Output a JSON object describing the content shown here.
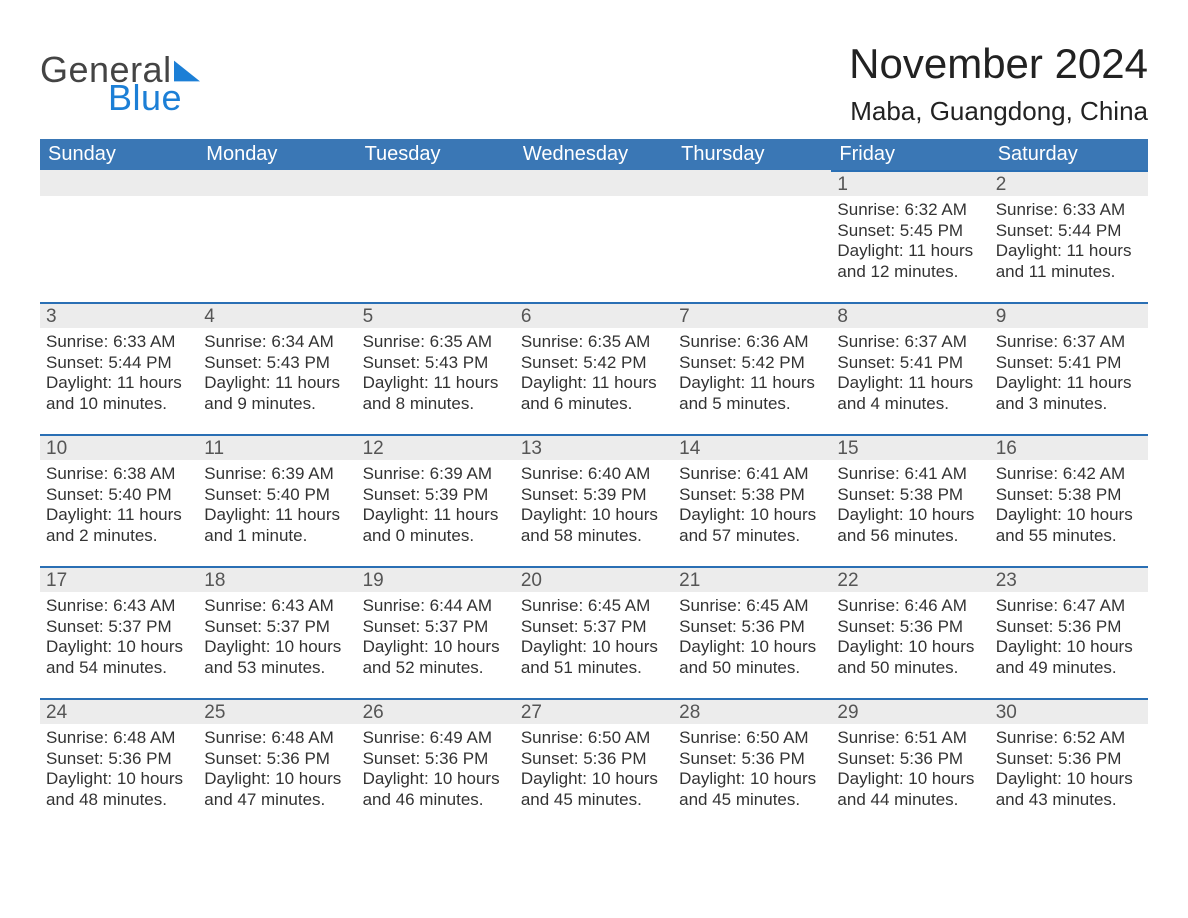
{
  "brand": {
    "word1": "General",
    "word2": "Blue"
  },
  "title": "November 2024",
  "location": "Maba, Guangdong, China",
  "colors": {
    "header_blue": "#3a77b5",
    "accent_blue": "#2a6fb4",
    "row_grey": "#ececec",
    "logo_blue": "#1c7fd6",
    "text_dark": "#333333",
    "background": "#ffffff"
  },
  "typography": {
    "title_fontsize": 42,
    "location_fontsize": 26,
    "weekday_fontsize": 20,
    "daynum_fontsize": 19,
    "body_fontsize": 17
  },
  "calendar": {
    "type": "table",
    "columns": [
      "Sunday",
      "Monday",
      "Tuesday",
      "Wednesday",
      "Thursday",
      "Friday",
      "Saturday"
    ],
    "labels": {
      "sunrise_prefix": "Sunrise: ",
      "sunset_prefix": "Sunset: ",
      "daylight_prefix": "Daylight: "
    },
    "weeks": [
      [
        null,
        null,
        null,
        null,
        null,
        {
          "day": "1",
          "sunrise": "6:32 AM",
          "sunset": "5:45 PM",
          "daylight": "11 hours and 12 minutes."
        },
        {
          "day": "2",
          "sunrise": "6:33 AM",
          "sunset": "5:44 PM",
          "daylight": "11 hours and 11 minutes."
        }
      ],
      [
        {
          "day": "3",
          "sunrise": "6:33 AM",
          "sunset": "5:44 PM",
          "daylight": "11 hours and 10 minutes."
        },
        {
          "day": "4",
          "sunrise": "6:34 AM",
          "sunset": "5:43 PM",
          "daylight": "11 hours and 9 minutes."
        },
        {
          "day": "5",
          "sunrise": "6:35 AM",
          "sunset": "5:43 PM",
          "daylight": "11 hours and 8 minutes."
        },
        {
          "day": "6",
          "sunrise": "6:35 AM",
          "sunset": "5:42 PM",
          "daylight": "11 hours and 6 minutes."
        },
        {
          "day": "7",
          "sunrise": "6:36 AM",
          "sunset": "5:42 PM",
          "daylight": "11 hours and 5 minutes."
        },
        {
          "day": "8",
          "sunrise": "6:37 AM",
          "sunset": "5:41 PM",
          "daylight": "11 hours and 4 minutes."
        },
        {
          "day": "9",
          "sunrise": "6:37 AM",
          "sunset": "5:41 PM",
          "daylight": "11 hours and 3 minutes."
        }
      ],
      [
        {
          "day": "10",
          "sunrise": "6:38 AM",
          "sunset": "5:40 PM",
          "daylight": "11 hours and 2 minutes."
        },
        {
          "day": "11",
          "sunrise": "6:39 AM",
          "sunset": "5:40 PM",
          "daylight": "11 hours and 1 minute."
        },
        {
          "day": "12",
          "sunrise": "6:39 AM",
          "sunset": "5:39 PM",
          "daylight": "11 hours and 0 minutes."
        },
        {
          "day": "13",
          "sunrise": "6:40 AM",
          "sunset": "5:39 PM",
          "daylight": "10 hours and 58 minutes."
        },
        {
          "day": "14",
          "sunrise": "6:41 AM",
          "sunset": "5:38 PM",
          "daylight": "10 hours and 57 minutes."
        },
        {
          "day": "15",
          "sunrise": "6:41 AM",
          "sunset": "5:38 PM",
          "daylight": "10 hours and 56 minutes."
        },
        {
          "day": "16",
          "sunrise": "6:42 AM",
          "sunset": "5:38 PM",
          "daylight": "10 hours and 55 minutes."
        }
      ],
      [
        {
          "day": "17",
          "sunrise": "6:43 AM",
          "sunset": "5:37 PM",
          "daylight": "10 hours and 54 minutes."
        },
        {
          "day": "18",
          "sunrise": "6:43 AM",
          "sunset": "5:37 PM",
          "daylight": "10 hours and 53 minutes."
        },
        {
          "day": "19",
          "sunrise": "6:44 AM",
          "sunset": "5:37 PM",
          "daylight": "10 hours and 52 minutes."
        },
        {
          "day": "20",
          "sunrise": "6:45 AM",
          "sunset": "5:37 PM",
          "daylight": "10 hours and 51 minutes."
        },
        {
          "day": "21",
          "sunrise": "6:45 AM",
          "sunset": "5:36 PM",
          "daylight": "10 hours and 50 minutes."
        },
        {
          "day": "22",
          "sunrise": "6:46 AM",
          "sunset": "5:36 PM",
          "daylight": "10 hours and 50 minutes."
        },
        {
          "day": "23",
          "sunrise": "6:47 AM",
          "sunset": "5:36 PM",
          "daylight": "10 hours and 49 minutes."
        }
      ],
      [
        {
          "day": "24",
          "sunrise": "6:48 AM",
          "sunset": "5:36 PM",
          "daylight": "10 hours and 48 minutes."
        },
        {
          "day": "25",
          "sunrise": "6:48 AM",
          "sunset": "5:36 PM",
          "daylight": "10 hours and 47 minutes."
        },
        {
          "day": "26",
          "sunrise": "6:49 AM",
          "sunset": "5:36 PM",
          "daylight": "10 hours and 46 minutes."
        },
        {
          "day": "27",
          "sunrise": "6:50 AM",
          "sunset": "5:36 PM",
          "daylight": "10 hours and 45 minutes."
        },
        {
          "day": "28",
          "sunrise": "6:50 AM",
          "sunset": "5:36 PM",
          "daylight": "10 hours and 45 minutes."
        },
        {
          "day": "29",
          "sunrise": "6:51 AM",
          "sunset": "5:36 PM",
          "daylight": "10 hours and 44 minutes."
        },
        {
          "day": "30",
          "sunrise": "6:52 AM",
          "sunset": "5:36 PM",
          "daylight": "10 hours and 43 minutes."
        }
      ]
    ]
  }
}
